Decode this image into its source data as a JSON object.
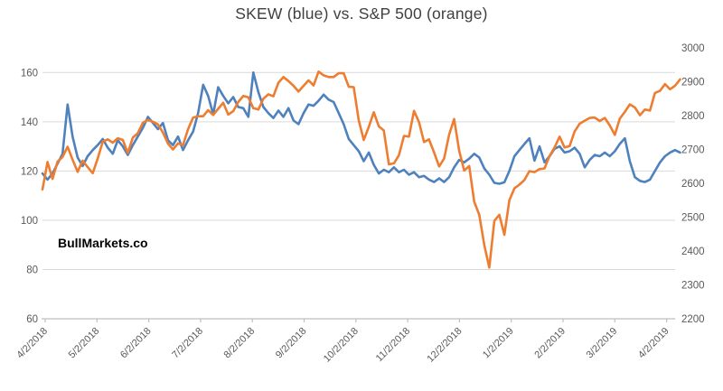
{
  "title": "SKEW (blue) vs. S&P 500 (orange)",
  "watermark": "BullMarkets.co",
  "colors": {
    "skew_line": "#4f81bd",
    "sp500_line": "#ed7d31",
    "gridline": "#d9d9d9",
    "axis_line": "#bfbfbf",
    "tick_label": "#595959",
    "title_text": "#404040",
    "background": "#ffffff"
  },
  "chart_data": {
    "type": "line",
    "title": "SKEW (blue) vs. S&P 500 (orange)",
    "grid": true,
    "legend_position": "none",
    "x_tick_labels": [
      "4/2/2018",
      "5/2/2018",
      "6/2/2018",
      "7/2/2018",
      "8/2/2018",
      "9/2/2018",
      "10/2/2018",
      "11/2/2018",
      "12/2/2018",
      "1/2/2019",
      "2/2/2019",
      "3/2/2019",
      "4/2/2019"
    ],
    "left_axis": {
      "series": "SKEW",
      "min": 60,
      "max": 170,
      "tick_labels": [
        60,
        80,
        100,
        120,
        140,
        160
      ]
    },
    "right_axis": {
      "series": "S&P 500",
      "min": 2200,
      "max": 3000,
      "tick_labels": [
        2200,
        2300,
        2400,
        2500,
        2600,
        2700,
        2800,
        2900,
        3000
      ]
    },
    "x": [
      "2018-04-02",
      "2018-04-05",
      "2018-04-09",
      "2018-04-12",
      "2018-04-16",
      "2018-04-18",
      "2018-04-20",
      "2018-04-24",
      "2018-04-26",
      "2018-04-30",
      "2018-05-03",
      "2018-05-07",
      "2018-05-10",
      "2018-05-14",
      "2018-05-17",
      "2018-05-21",
      "2018-05-24",
      "2018-05-29",
      "2018-06-01",
      "2018-06-05",
      "2018-06-08",
      "2018-06-12",
      "2018-06-14",
      "2018-06-18",
      "2018-06-21",
      "2018-06-25",
      "2018-06-27",
      "2018-06-29",
      "2018-07-03",
      "2018-07-06",
      "2018-07-10",
      "2018-07-12",
      "2018-07-16",
      "2018-07-18",
      "2018-07-20",
      "2018-07-24",
      "2018-07-26",
      "2018-07-30",
      "2018-08-01",
      "2018-08-03",
      "2018-08-07",
      "2018-08-09",
      "2018-08-13",
      "2018-08-15",
      "2018-08-17",
      "2018-08-21",
      "2018-08-23",
      "2018-08-27",
      "2018-08-29",
      "2018-08-31",
      "2018-09-05",
      "2018-09-07",
      "2018-09-11",
      "2018-09-13",
      "2018-09-17",
      "2018-09-20",
      "2018-09-24",
      "2018-09-26",
      "2018-09-28",
      "2018-10-01",
      "2018-10-03",
      "2018-10-05",
      "2018-10-08",
      "2018-10-10",
      "2018-10-11",
      "2018-10-12",
      "2018-10-16",
      "2018-10-18",
      "2018-10-22",
      "2018-10-24",
      "2018-10-26",
      "2018-10-30",
      "2018-11-01",
      "2018-11-05",
      "2018-11-07",
      "2018-11-09",
      "2018-11-13",
      "2018-11-15",
      "2018-11-19",
      "2018-11-21",
      "2018-11-26",
      "2018-11-28",
      "2018-12-03",
      "2018-12-06",
      "2018-12-10",
      "2018-12-13",
      "2018-12-17",
      "2018-12-19",
      "2018-12-21",
      "2018-12-24",
      "2018-12-27",
      "2018-12-31",
      "2019-01-03",
      "2019-01-07",
      "2019-01-09",
      "2019-01-11",
      "2019-01-15",
      "2019-01-17",
      "2019-01-22",
      "2019-01-24",
      "2019-01-28",
      "2019-01-30",
      "2019-02-01",
      "2019-02-05",
      "2019-02-07",
      "2019-02-11",
      "2019-02-13",
      "2019-02-15",
      "2019-02-20",
      "2019-02-22",
      "2019-02-26",
      "2019-02-28",
      "2019-03-04",
      "2019-03-06",
      "2019-03-08",
      "2019-03-12",
      "2019-03-14",
      "2019-03-18",
      "2019-03-20",
      "2019-03-22",
      "2019-03-26",
      "2019-03-28",
      "2019-04-01",
      "2019-04-03",
      "2019-04-05",
      "2019-04-09",
      "2019-04-11",
      "2019-04-12"
    ],
    "series": [
      {
        "name": "SKEW",
        "axis": "left",
        "color": "#4f81bd",
        "values": [
          119,
          116.5,
          119,
          123,
          127,
          147,
          134,
          125.5,
          122,
          126,
          128.5,
          130.5,
          133,
          129.5,
          127,
          132.5,
          130,
          126.5,
          130.5,
          134,
          137.5,
          142,
          139.5,
          137,
          139.5,
          132.5,
          130.5,
          134,
          128.5,
          132.5,
          136,
          143.5,
          155,
          150.5,
          143,
          154,
          150.5,
          147.5,
          150,
          146,
          145.5,
          142,
          160,
          152,
          146,
          143.5,
          141.5,
          144.5,
          142,
          145.5,
          140.5,
          139,
          143.5,
          147,
          146.5,
          148.5,
          151,
          149,
          148,
          143.5,
          139,
          133,
          130.5,
          128,
          124,
          127.5,
          122.5,
          119,
          120.5,
          119.5,
          121.5,
          119.5,
          120.5,
          118.5,
          119.5,
          117.5,
          118,
          116.5,
          115.5,
          117,
          115.5,
          117.5,
          121.5,
          124.5,
          123.5,
          125,
          127,
          125.5,
          121,
          118.5,
          115.2,
          114.8,
          115.4,
          120,
          126,
          128.5,
          131,
          133.3,
          124.2,
          130,
          123.5,
          126,
          129,
          130,
          127.5,
          128,
          129.5,
          127,
          121.5,
          124.5,
          126.5,
          126,
          127.5,
          126,
          128,
          131,
          133.3,
          124,
          117.5,
          116,
          115.5,
          116.5,
          120,
          123.5,
          126,
          127.5,
          128.5,
          127.5
        ]
      },
      {
        "name": "S&P 500",
        "axis": "right",
        "color": "#ed7d31",
        "values": [
          2582,
          2663,
          2613,
          2664,
          2678,
          2708,
          2670,
          2634,
          2667,
          2648,
          2630,
          2673,
          2723,
          2730,
          2720,
          2733,
          2728,
          2690,
          2735,
          2748,
          2779,
          2787,
          2782,
          2774,
          2750,
          2717,
          2700,
          2718,
          2713,
          2760,
          2794,
          2798,
          2798,
          2816,
          2802,
          2820,
          2838,
          2803,
          2813,
          2840,
          2858,
          2854,
          2822,
          2818,
          2850,
          2863,
          2857,
          2897,
          2914,
          2902,
          2888,
          2871,
          2888,
          2904,
          2889,
          2930,
          2919,
          2914,
          2914,
          2925,
          2925,
          2885,
          2884,
          2785,
          2728,
          2767,
          2810,
          2768,
          2756,
          2656,
          2659,
          2683,
          2740,
          2738,
          2814,
          2781,
          2722,
          2730,
          2691,
          2650,
          2673,
          2744,
          2790,
          2696,
          2638,
          2651,
          2546,
          2507,
          2417,
          2351,
          2489,
          2507,
          2448,
          2550,
          2585,
          2596,
          2610,
          2636,
          2633,
          2642,
          2644,
          2681,
          2706,
          2738,
          2706,
          2710,
          2753,
          2776,
          2785,
          2793,
          2794,
          2784,
          2793,
          2771,
          2743,
          2791,
          2811,
          2833,
          2824,
          2801,
          2818,
          2815,
          2867,
          2873,
          2893,
          2878,
          2888,
          2907
        ]
      }
    ]
  }
}
